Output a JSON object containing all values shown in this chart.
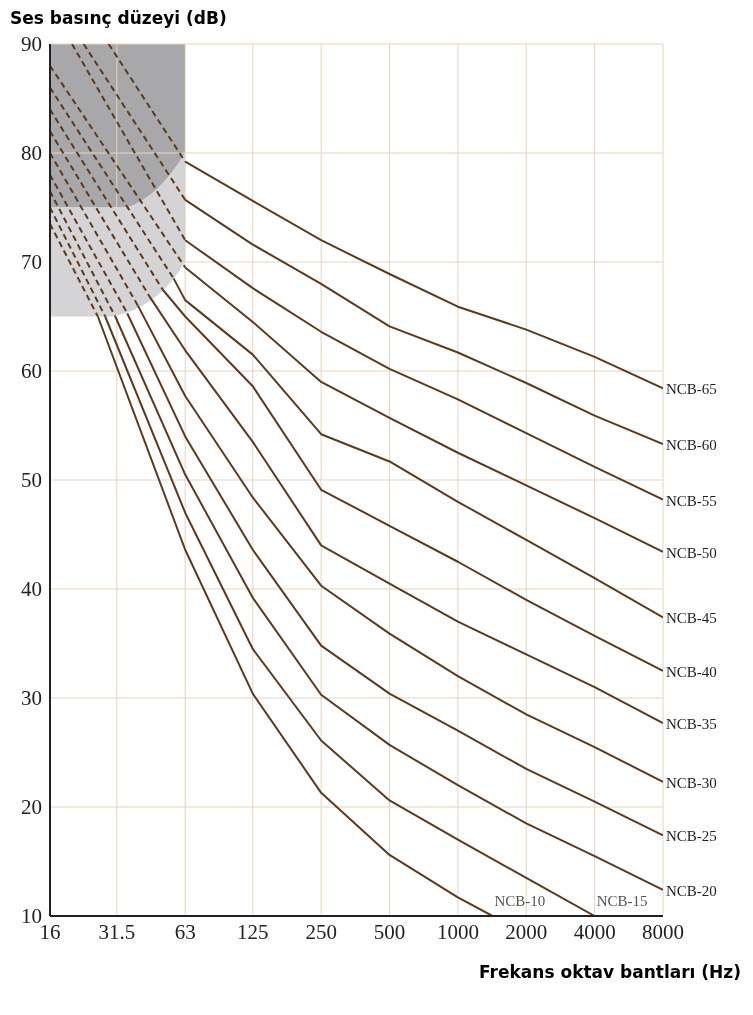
{
  "chart_data": {
    "type": "line",
    "xlabel": "Frekans oktav bantları (Hz)",
    "ylabel": "Ses basınç düzeyi (dB)",
    "log": "x",
    "grid": true,
    "legend": false,
    "xlim": [
      16,
      8000
    ],
    "xticks": [
      16,
      31.5,
      63,
      125,
      250,
      500,
      1000,
      2000,
      4000,
      8000
    ],
    "ylim": [
      10,
      90
    ],
    "yticks": [
      10,
      20,
      30,
      40,
      50,
      60,
      70,
      80,
      90
    ],
    "series": [
      {
        "color": "#5c3a1e",
        "line_style": "dashed",
        "x": [
          29,
          63
        ],
        "values": [
          90,
          79.2
        ]
      },
      {
        "color": "#5c3a1e",
        "line_style": "dashed",
        "x": [
          22.5,
          63
        ],
        "values": [
          90,
          75.7
        ]
      },
      {
        "color": "#5c3a1e",
        "line_style": "dashed",
        "x": [
          20,
          63
        ],
        "values": [
          90,
          72.0
        ]
      },
      {
        "color": "#5c3a1e",
        "line_style": "dashed",
        "x": [
          16,
          63
        ],
        "values": [
          88,
          69.5
        ]
      },
      {
        "color": "#5c3a1e",
        "line_style": "dashed",
        "x": [
          16,
          56
        ],
        "values": [
          86,
          68.5
        ]
      },
      {
        "color": "#5c3a1e",
        "line_style": "dashed",
        "x": [
          16,
          50
        ],
        "values": [
          84,
          67.5
        ]
      },
      {
        "color": "#5c3a1e",
        "line_style": "dashed",
        "x": [
          16,
          44
        ],
        "values": [
          82,
          66.8
        ]
      },
      {
        "color": "#5c3a1e",
        "line_style": "dashed",
        "x": [
          16,
          39
        ],
        "values": [
          80,
          66
        ]
      },
      {
        "color": "#5c3a1e",
        "line_style": "dashed",
        "x": [
          16,
          35
        ],
        "values": [
          78,
          65.3
        ]
      },
      {
        "color": "#5c3a1e",
        "line_style": "dashed",
        "x": [
          16,
          31
        ],
        "values": [
          76.5,
          65
        ]
      },
      {
        "color": "#5c3a1e",
        "line_style": "dashed",
        "x": [
          16,
          28
        ],
        "values": [
          75,
          65
        ]
      },
      {
        "color": "#5c3a1e",
        "line_style": "dashed",
        "x": [
          16,
          26
        ],
        "values": [
          73.5,
          65
        ]
      },
      {
        "name": "NCB-65",
        "color": "#5c3a1e",
        "line_style": "solid",
        "x": [
          63,
          125,
          250,
          500,
          1000,
          2000,
          4000,
          8000
        ],
        "values": [
          79.2,
          75.6,
          72.0,
          68.9,
          65.9,
          63.8,
          61.3,
          58.4
        ]
      },
      {
        "name": "NCB-60",
        "color": "#5c3a1e",
        "line_style": "solid",
        "x": [
          63,
          125,
          250,
          500,
          1000,
          2000,
          4000,
          8000
        ],
        "values": [
          75.7,
          71.6,
          68.0,
          64.1,
          61.7,
          58.9,
          55.9,
          53.3
        ]
      },
      {
        "name": "NCB-55",
        "color": "#5c3a1e",
        "line_style": "solid",
        "x": [
          63,
          125,
          250,
          500,
          1000,
          2000,
          4000,
          8000
        ],
        "values": [
          72.0,
          67.6,
          63.6,
          60.2,
          57.4,
          54.3,
          51.2,
          48.2
        ]
      },
      {
        "name": "NCB-50",
        "color": "#5c3a1e",
        "line_style": "solid",
        "x": [
          63,
          125,
          250,
          500,
          1000,
          2000,
          4000,
          8000
        ],
        "values": [
          69.5,
          64.5,
          59.0,
          55.7,
          52.5,
          49.5,
          46.5,
          43.4
        ]
      },
      {
        "name": "NCB-45",
        "color": "#5c3a1e",
        "line_style": "solid",
        "x": [
          56,
          63,
          125,
          250,
          500,
          1000,
          2000,
          4000,
          8000
        ],
        "values": [
          68.5,
          66.5,
          61.5,
          54.2,
          51.7,
          48,
          44.5,
          41,
          37.4
        ]
      },
      {
        "name": "NCB-40",
        "color": "#5c3a1e",
        "line_style": "solid",
        "x": [
          50,
          63,
          125,
          250,
          500,
          1000,
          2000,
          4000,
          8000
        ],
        "values": [
          67.5,
          65,
          58.6,
          49.1,
          45.8,
          42.5,
          39,
          35.7,
          32.5
        ]
      },
      {
        "name": "NCB-35",
        "color": "#5c3a1e",
        "line_style": "solid",
        "x": [
          44,
          63,
          125,
          250,
          500,
          1000,
          2000,
          4000,
          8000
        ],
        "values": [
          66.8,
          61.9,
          53.5,
          44.0,
          40.5,
          37,
          34,
          31,
          27.7
        ]
      },
      {
        "name": "NCB-30",
        "color": "#5c3a1e",
        "line_style": "solid",
        "x": [
          39,
          63,
          125,
          250,
          500,
          1000,
          2000,
          4000,
          8000
        ],
        "values": [
          66,
          57.7,
          48.4,
          40.3,
          35.9,
          32,
          28.5,
          25.5,
          22.3
        ]
      },
      {
        "name": "NCB-25",
        "color": "#5c3a1e",
        "line_style": "solid",
        "x": [
          35,
          63,
          125,
          250,
          500,
          1000,
          2000,
          4000,
          8000
        ],
        "values": [
          65.3,
          54,
          43.6,
          34.8,
          30.4,
          27,
          23.5,
          20.5,
          17.4
        ]
      },
      {
        "name": "NCB-20",
        "color": "#5c3a1e",
        "line_style": "solid",
        "x": [
          31,
          63,
          125,
          250,
          500,
          1000,
          2000,
          4000,
          8000
        ],
        "values": [
          65,
          50.5,
          39.2,
          30.3,
          25.7,
          22,
          18.5,
          15.5,
          12.4
        ]
      },
      {
        "name": "NCB-15",
        "color": "#5c3a1e",
        "line_style": "solid",
        "x": [
          28,
          63,
          125,
          250,
          500,
          1000,
          2000,
          4000
        ],
        "values": [
          65,
          47,
          34.5,
          26.1,
          20.6,
          17,
          13.5,
          10
        ]
      },
      {
        "name": "NCB-10",
        "color": "#5c3a1e",
        "line_style": "solid",
        "x": [
          26,
          63,
          125,
          250,
          500,
          1000,
          1420
        ],
        "values": [
          65,
          43.6,
          30.4,
          21.3,
          15.6,
          11.7,
          10
        ]
      }
    ]
  }
}
